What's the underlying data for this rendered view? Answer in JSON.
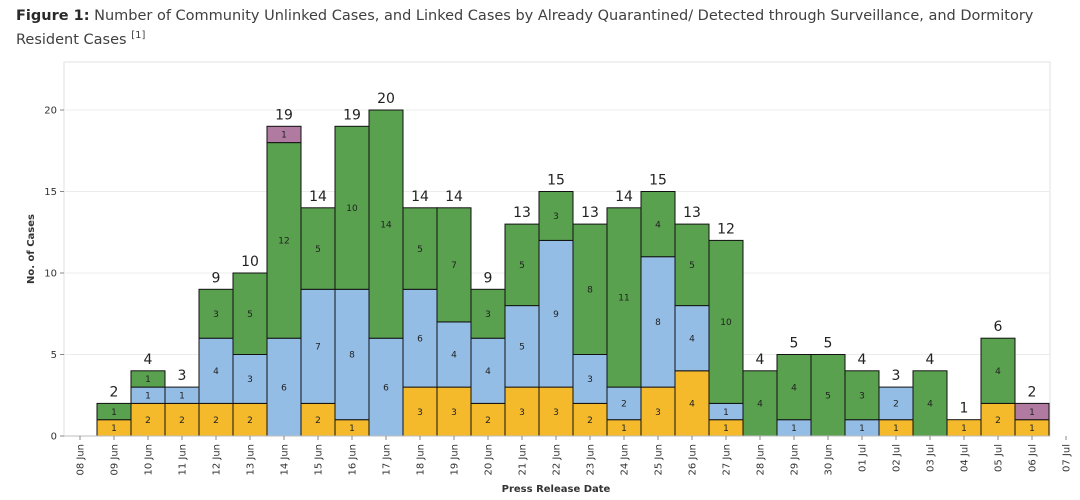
{
  "figure": {
    "label": "Figure 1:",
    "title": "Number of Community Unlinked Cases, and Linked Cases by Already Quarantined/ Detected through Surveillance, and Dormitory Resident Cases",
    "footnote": "[1]"
  },
  "colors": {
    "yellow": "#f5b92c",
    "blue": "#94bde6",
    "green": "#59a04f",
    "purple": "#b07aa1",
    "grid": "#ececec",
    "outline": "#111111"
  },
  "chart_data": {
    "type": "bar",
    "stacked": true,
    "xlabel": "Press Release Date",
    "ylabel": "No. of Cases",
    "ylim": [
      0,
      22
    ],
    "yticks": [
      0,
      5,
      10,
      15,
      20
    ],
    "grid": true,
    "categories": [
      "08 Jun",
      "09 Jun",
      "10 Jun",
      "11 Jun",
      "12 Jun",
      "13 Jun",
      "14 Jun",
      "15 Jun",
      "16 Jun",
      "17 Jun",
      "18 Jun",
      "19 Jun",
      "20 Jun",
      "21 Jun",
      "22 Jun",
      "23 Jun",
      "24 Jun",
      "25 Jun",
      "26 Jun",
      "27 Jun",
      "28 Jun",
      "29 Jun",
      "30 Jun",
      "01 Jul",
      "02 Jul",
      "03 Jul",
      "04 Jul",
      "05 Jul",
      "06 Jul",
      "07 Jul"
    ],
    "series": [
      {
        "color": "yellow",
        "values": [
          0,
          1,
          2,
          2,
          2,
          2,
          0,
          2,
          1,
          0,
          3,
          3,
          2,
          3,
          3,
          2,
          1,
          3,
          4,
          1,
          0,
          0,
          0,
          0,
          1,
          0,
          1,
          2,
          1,
          0
        ]
      },
      {
        "color": "blue",
        "values": [
          0,
          0,
          1,
          1,
          4,
          3,
          6,
          7,
          8,
          6,
          6,
          4,
          4,
          5,
          9,
          3,
          2,
          8,
          4,
          1,
          0,
          1,
          0,
          1,
          2,
          0,
          0,
          0,
          0,
          0
        ]
      },
      {
        "color": "green",
        "values": [
          0,
          1,
          1,
          0,
          3,
          5,
          12,
          5,
          10,
          14,
          5,
          7,
          3,
          5,
          3,
          8,
          11,
          4,
          5,
          10,
          4,
          4,
          5,
          3,
          0,
          4,
          0,
          4,
          0,
          0
        ]
      },
      {
        "color": "purple",
        "values": [
          0,
          0,
          0,
          0,
          0,
          0,
          1,
          0,
          0,
          0,
          0,
          0,
          0,
          0,
          0,
          0,
          0,
          0,
          0,
          0,
          0,
          0,
          0,
          0,
          0,
          0,
          0,
          0,
          1,
          0
        ]
      }
    ],
    "totals": [
      null,
      2,
      4,
      3,
      9,
      10,
      19,
      14,
      19,
      20,
      14,
      14,
      9,
      13,
      15,
      13,
      14,
      15,
      13,
      12,
      4,
      5,
      5,
      4,
      3,
      4,
      1,
      6,
      2,
      null
    ]
  }
}
